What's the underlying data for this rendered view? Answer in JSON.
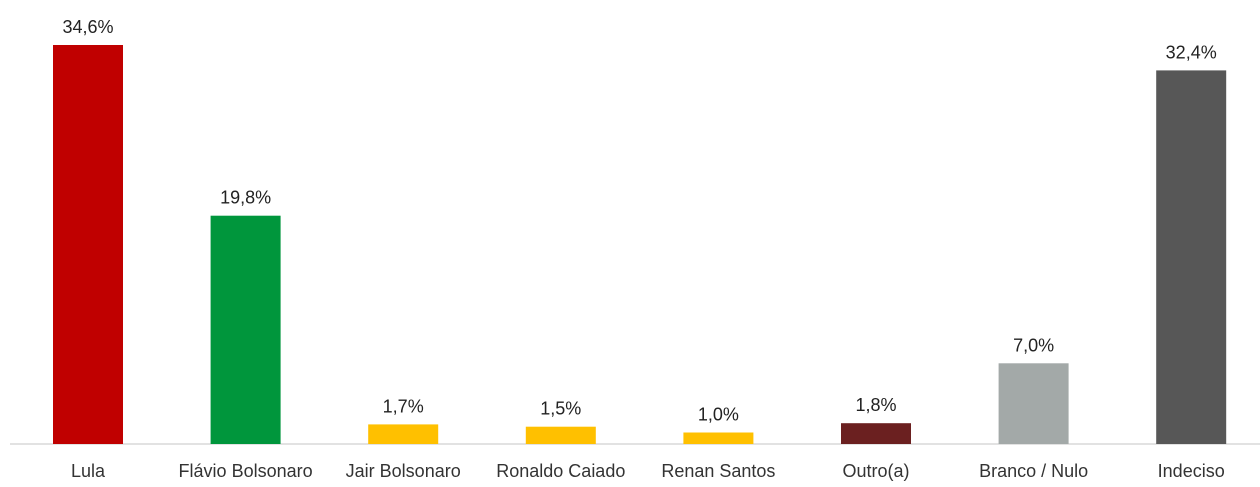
{
  "chart_data": {
    "type": "bar",
    "categories": [
      "Lula",
      "Flávio Bolsonaro",
      "Jair Bolsonaro",
      "Ronaldo Caiado",
      "Renan Santos",
      "Outro(a)",
      "Branco / Nulo",
      "Indeciso"
    ],
    "values": [
      34.6,
      19.8,
      1.7,
      1.5,
      1.0,
      1.8,
      7.0,
      32.4
    ],
    "value_labels": [
      "34,6%",
      "19,8%",
      "1,7%",
      "1,5%",
      "1,0%",
      "1,8%",
      "7,0%",
      "32,4%"
    ],
    "colors": [
      "#C00000",
      "#00963C",
      "#FFC000",
      "#FFC000",
      "#FFC000",
      "#6B2020",
      "#A3A9A8",
      "#575757"
    ],
    "title": "",
    "xlabel": "",
    "ylabel": "",
    "ylim": [
      0,
      36
    ],
    "grid": false,
    "legend": "none"
  }
}
